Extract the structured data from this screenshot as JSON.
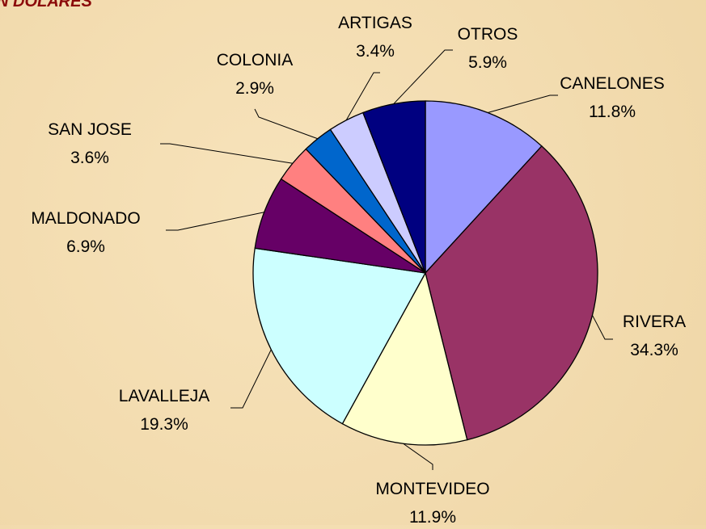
{
  "chart_data": {
    "type": "pie",
    "title": "N DOLARES",
    "categories": [
      "CANELONES",
      "RIVERA",
      "MONTEVIDEO",
      "LAVALLEJA",
      "MALDONADO",
      "SAN JOSE",
      "COLONIA",
      "ARTIGAS",
      "OTROS"
    ],
    "values": [
      11.8,
      34.3,
      11.9,
      19.3,
      6.9,
      3.6,
      2.9,
      3.4,
      5.9
    ],
    "value_labels": [
      "11.8%",
      "34.3%",
      "11.9%",
      "19.3%",
      "6.9%",
      "3.6%",
      "2.9%",
      "3.4%",
      "5.9%"
    ],
    "colors": [
      "#9999ff",
      "#993366",
      "#ffffcc",
      "#ccffff",
      "#660066",
      "#ff8080",
      "#0066cc",
      "#ccccff",
      "#000080"
    ]
  }
}
